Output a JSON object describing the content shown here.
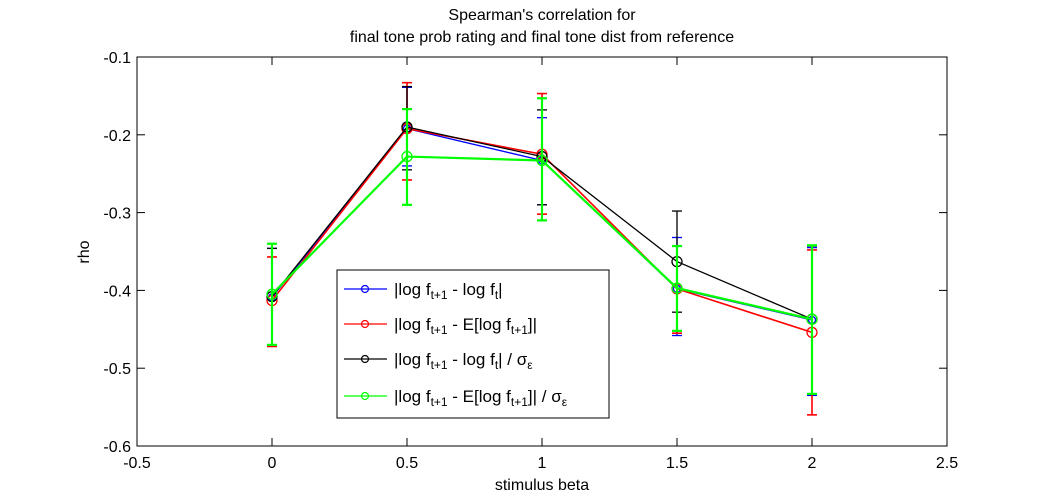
{
  "chart_data": {
    "type": "line",
    "title_lines": [
      "Spearman's correlation for",
      "final tone prob rating and final tone dist from reference"
    ],
    "xlabel": "stimulus beta",
    "ylabel": "rho",
    "xlim": [
      -0.5,
      2.5
    ],
    "ylim": [
      -0.6,
      -0.1
    ],
    "xticks": [
      -0.5,
      0,
      0.5,
      1,
      1.5,
      2,
      2.5
    ],
    "xtick_labels": [
      "-0.5",
      "0",
      "0.5",
      "1",
      "1.5",
      "2",
      "2.5"
    ],
    "yticks": [
      -0.6,
      -0.5,
      -0.4,
      -0.3,
      -0.2,
      -0.1
    ],
    "ytick_labels": [
      "-0.6",
      "-0.5",
      "-0.4",
      "-0.3",
      "-0.2",
      "-0.1"
    ],
    "grid": false,
    "legend_position": "lower-left",
    "x": [
      0,
      0.5,
      1,
      1.5,
      2
    ],
    "series": [
      {
        "color": "#0000ff",
        "marker_size": "small",
        "legend": {
          "prefix": "|log f",
          "sub1": "t+1",
          "mid": " - log f",
          "sub2": "t",
          "suffix": "|",
          "sigma": false
        },
        "y": [
          -0.409,
          -0.192,
          -0.233,
          -0.398,
          -0.438
        ],
        "err_low": [
          -0.472,
          -0.24,
          -0.29,
          -0.458,
          -0.535
        ],
        "err_high": [
          -0.346,
          -0.139,
          -0.178,
          -0.332,
          -0.345
        ]
      },
      {
        "color": "#ff0000",
        "marker_size": "large",
        "legend": {
          "prefix": "|log f",
          "sub1": "t+1",
          "mid": " - E[log f",
          "sub2": "t+1",
          "suffix": "]|",
          "sigma": false
        },
        "y": [
          -0.413,
          -0.192,
          -0.225,
          -0.398,
          -0.454
        ],
        "err_low": [
          -0.472,
          -0.258,
          -0.302,
          -0.455,
          -0.56
        ],
        "err_high": [
          -0.357,
          -0.133,
          -0.147,
          -0.343,
          -0.348
        ]
      },
      {
        "color": "#000000",
        "marker_size": "large",
        "legend": {
          "prefix": "|log f",
          "sub1": "t+1",
          "mid": " - log f",
          "sub2": "t",
          "suffix": "| / σ",
          "sigma": true
        },
        "y": [
          -0.408,
          -0.19,
          -0.228,
          -0.363,
          -0.437
        ],
        "err_low": [
          -0.47,
          -0.245,
          -0.29,
          -0.428,
          -0.533
        ],
        "err_high": [
          -0.346,
          -0.138,
          -0.168,
          -0.298,
          -0.343
        ]
      },
      {
        "color": "#00ff00",
        "marker_size": "large",
        "legend": {
          "prefix": "|log f",
          "sub1": "t+1",
          "mid": " - E[log f",
          "sub2": "t+1",
          "suffix": "]| / σ",
          "sigma": true
        },
        "y": [
          -0.405,
          -0.228,
          -0.233,
          -0.397,
          -0.437
        ],
        "err_low": [
          -0.47,
          -0.29,
          -0.31,
          -0.452,
          -0.533
        ],
        "err_high": [
          -0.34,
          -0.167,
          -0.153,
          -0.343,
          -0.342
        ]
      }
    ]
  },
  "sigma_sub": "ε"
}
